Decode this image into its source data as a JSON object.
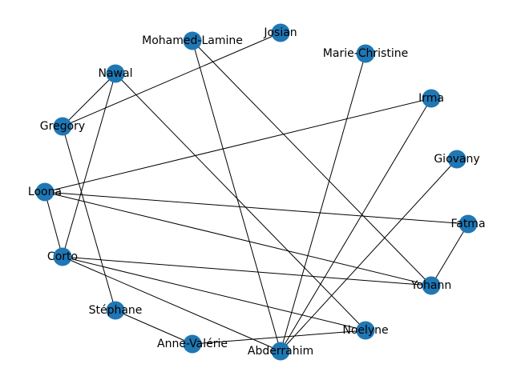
{
  "nodes": [
    {
      "label": "Josian"
    },
    {
      "label": "Mohamed-Lamine"
    },
    {
      "label": "Marie-Christine"
    },
    {
      "label": "Nawal"
    },
    {
      "label": "Irma"
    },
    {
      "label": "Gregory"
    },
    {
      "label": "Giovany"
    },
    {
      "label": "Loona"
    },
    {
      "label": "Fatma"
    },
    {
      "label": "Corto"
    },
    {
      "label": "Yohann"
    },
    {
      "label": "Stéphane"
    },
    {
      "label": "Noelyne"
    },
    {
      "label": "Anne-Valérie"
    },
    {
      "label": "Abderrahim"
    }
  ]
}
